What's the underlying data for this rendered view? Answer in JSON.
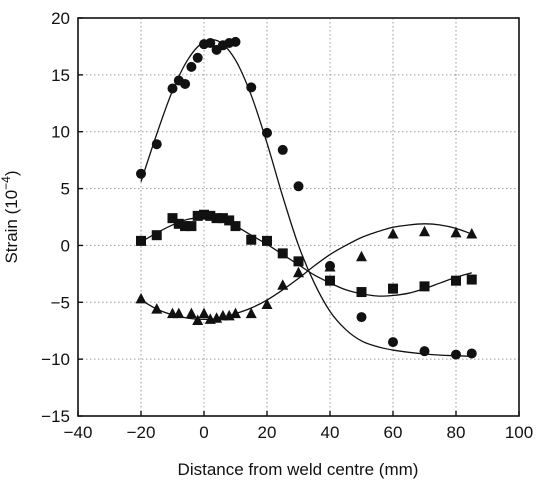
{
  "chart_data": {
    "type": "scatter",
    "title": "",
    "xlabel": "Distance from weld centre (mm)",
    "ylabel": "Strain (10",
    "ylabel_exponent": "−4",
    "ylabel_close": ")",
    "xlim": [
      -40,
      100
    ],
    "ylim": [
      -15,
      20
    ],
    "x_ticks": [
      -40,
      -20,
      0,
      20,
      40,
      60,
      80,
      100
    ],
    "y_ticks": [
      -15,
      -10,
      -5,
      0,
      5,
      10,
      15,
      20
    ],
    "x_tick_labels": [
      "−40",
      "−20",
      "0",
      "20",
      "40",
      "60",
      "80",
      "100"
    ],
    "y_tick_labels": [
      "−15",
      "−10",
      "−5",
      "0",
      "5",
      "10",
      "15",
      "20"
    ],
    "grid": true,
    "series": [
      {
        "marker": "circle",
        "x": [
          -20,
          -15,
          -10,
          -8,
          -6,
          -4,
          -2,
          0,
          2,
          4,
          6,
          8,
          10,
          15,
          20,
          25,
          30,
          40,
          50,
          60,
          70,
          80,
          85
        ],
        "y": [
          6.3,
          8.9,
          13.8,
          14.5,
          14.2,
          15.7,
          16.5,
          17.7,
          17.8,
          17.2,
          17.6,
          17.8,
          17.9,
          13.9,
          9.9,
          8.4,
          5.2,
          -1.8,
          -6.3,
          -8.5,
          -9.3,
          -9.6,
          -9.5
        ],
        "fit_x": [
          -20,
          -15,
          -10,
          -5,
          0,
          5,
          10,
          15,
          20,
          25,
          30,
          35,
          40,
          45,
          50,
          55,
          60,
          65,
          70,
          75,
          80,
          85
        ],
        "fit_y": [
          5.6,
          9.8,
          13.6,
          16.4,
          17.9,
          17.9,
          16.3,
          13.2,
          9.0,
          4.3,
          0.0,
          -3.3,
          -5.8,
          -7.4,
          -8.4,
          -8.9,
          -9.2,
          -9.4,
          -9.55,
          -9.65,
          -9.7,
          -9.75
        ]
      },
      {
        "marker": "square",
        "x": [
          -20,
          -15,
          -10,
          -8,
          -6,
          -4,
          -2,
          0,
          2,
          4,
          6,
          8,
          10,
          15,
          20,
          25,
          30,
          40,
          50,
          60,
          70,
          80,
          85
        ],
        "y": [
          0.4,
          0.9,
          2.4,
          1.9,
          1.7,
          1.7,
          2.6,
          2.7,
          2.6,
          2.4,
          2.4,
          2.2,
          1.7,
          0.5,
          0.4,
          -0.7,
          -1.4,
          -3.1,
          -4.1,
          -3.8,
          -3.6,
          -3.1,
          -3.0
        ],
        "fit_x": [
          -20,
          -15,
          -10,
          -5,
          0,
          5,
          10,
          15,
          20,
          25,
          30,
          35,
          40,
          45,
          50,
          55,
          60,
          65,
          70,
          75,
          80,
          85
        ],
        "fit_y": [
          0.3,
          1.1,
          1.8,
          2.3,
          2.4,
          2.2,
          1.7,
          0.9,
          0.1,
          -0.8,
          -1.7,
          -2.6,
          -3.3,
          -3.9,
          -4.25,
          -4.45,
          -4.4,
          -4.2,
          -3.8,
          -3.3,
          -2.8,
          -2.4
        ]
      },
      {
        "marker": "triangle",
        "x": [
          -20,
          -15,
          -10,
          -8,
          -4,
          -2,
          0,
          2,
          4,
          6,
          8,
          10,
          15,
          20,
          25,
          30,
          40,
          50,
          60,
          70,
          80,
          85
        ],
        "y": [
          -4.7,
          -5.6,
          -6.0,
          -6.0,
          -6.0,
          -6.6,
          -6.0,
          -6.5,
          -6.4,
          -6.2,
          -6.2,
          -6.0,
          -6.0,
          -5.2,
          -3.5,
          -2.4,
          -1.9,
          -1.0,
          1.0,
          1.2,
          1.1,
          1.0
        ],
        "fit_x": [
          -20,
          -15,
          -10,
          -5,
          0,
          5,
          10,
          15,
          20,
          25,
          30,
          35,
          40,
          45,
          50,
          55,
          60,
          65,
          70,
          75,
          80,
          85
        ],
        "fit_y": [
          -4.8,
          -5.6,
          -6.1,
          -6.4,
          -6.5,
          -6.4,
          -6.0,
          -5.5,
          -4.8,
          -3.9,
          -2.9,
          -1.8,
          -0.8,
          0.0,
          0.7,
          1.2,
          1.6,
          1.8,
          1.9,
          1.8,
          1.5,
          1.0
        ]
      }
    ]
  }
}
